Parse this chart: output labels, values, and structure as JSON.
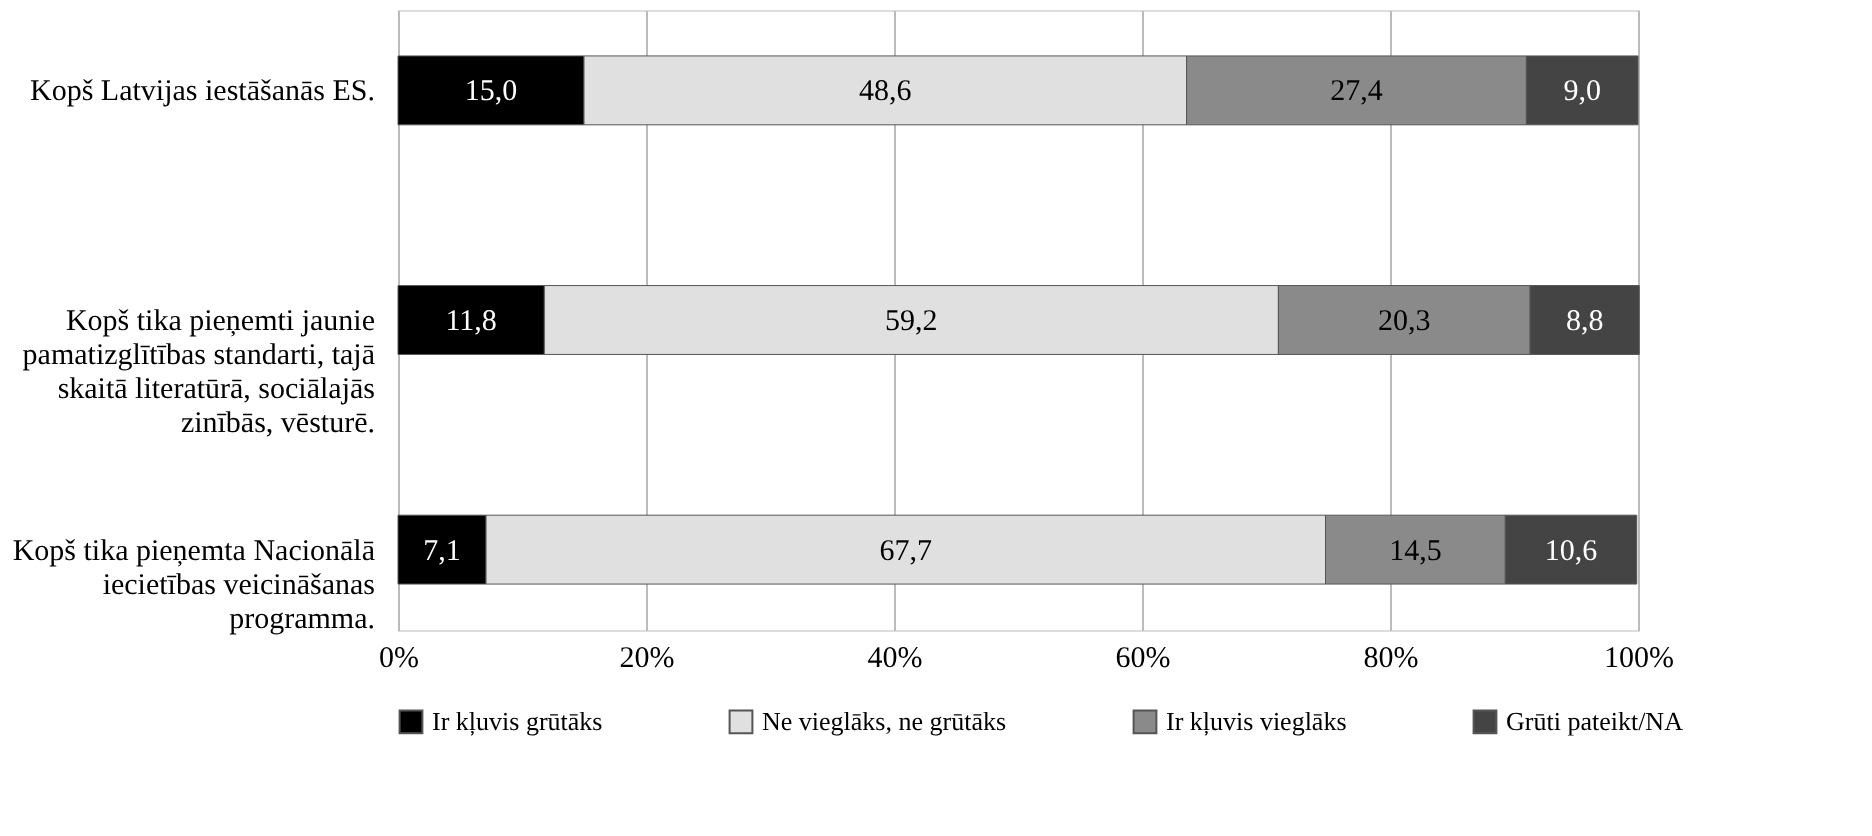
{
  "chart_data": {
    "type": "bar",
    "orientation": "horizontal",
    "stacked": true,
    "grid": "x",
    "legend": "bottom",
    "categories": [
      "Kopš Latvijas iestāšanās ES.",
      "Kopš tika pieņemti jaunie pamatizglītības standarti, tajā skaitā literatūrā, sociālajās zinībās, vēsturē.",
      "Kopš tika pieņemta Nacionālā iecietības veicināšanas programma."
    ],
    "xlim": [
      0,
      100
    ],
    "xticks": [
      {
        "value": 0,
        "label": "0%"
      },
      {
        "value": 20,
        "label": "20%"
      },
      {
        "value": 40,
        "label": "40%"
      },
      {
        "value": 60,
        "label": "60%"
      },
      {
        "value": 80,
        "label": "80%"
      },
      {
        "value": 100,
        "label": "100%"
      }
    ],
    "series": [
      {
        "name": "Ir kļuvis grūtāks",
        "color": "#000000",
        "values": [
          15.0,
          11.8,
          7.1
        ],
        "value_labels": [
          "15,0",
          "11,8",
          "7,1"
        ]
      },
      {
        "name": "Ne vieglāks, ne grūtāks",
        "color": "#e0e0e0",
        "values": [
          48.6,
          59.2,
          67.7
        ],
        "value_labels": [
          "48,6",
          "59,2",
          "67,7"
        ]
      },
      {
        "name": "Ir kļuvis vieglāks",
        "color": "#8a8a8a",
        "values": [
          27.4,
          20.3,
          14.5
        ],
        "value_labels": [
          "27,4",
          "20,3",
          "14,5"
        ]
      },
      {
        "name": "Grūti pateikt/NA",
        "color": "#444444",
        "values": [
          9.0,
          8.8,
          10.6
        ],
        "value_labels": [
          "9,0",
          "8,8",
          "10,6"
        ]
      }
    ]
  }
}
